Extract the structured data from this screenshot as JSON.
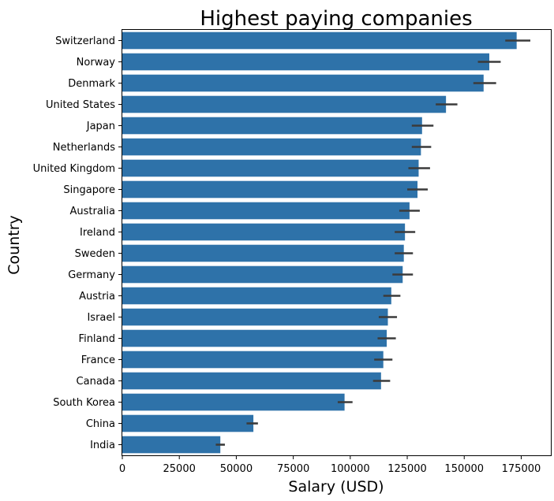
{
  "chart_data": {
    "type": "bar",
    "orientation": "horizontal",
    "title": "Highest paying companies",
    "xlabel": "Salary (USD)",
    "ylabel": "Country",
    "xlim": [
      0,
      188000
    ],
    "xticks": [
      0,
      25000,
      50000,
      75000,
      100000,
      125000,
      150000,
      175000
    ],
    "bar_color": "#2e72a9",
    "errorbar_color": "#3b3b3b",
    "grid": false,
    "legend": "none",
    "categories": [
      "Switzerland",
      "Norway",
      "Denmark",
      "United States",
      "Japan",
      "Netherlands",
      "United Kingdom",
      "Singapore",
      "Australia",
      "Ireland",
      "Sweden",
      "Germany",
      "Austria",
      "Israel",
      "Finland",
      "France",
      "Canada",
      "South Korea",
      "China",
      "India"
    ],
    "values": [
      173000,
      161000,
      158500,
      142000,
      131500,
      131000,
      130000,
      129500,
      126000,
      124000,
      123500,
      123000,
      118000,
      116500,
      116000,
      114500,
      113500,
      97500,
      57500,
      43000
    ],
    "error_low": [
      168000,
      156000,
      154000,
      137500,
      127000,
      127000,
      125500,
      125000,
      121500,
      119500,
      119500,
      118500,
      114500,
      112500,
      112000,
      110500,
      110000,
      94500,
      54500,
      41000
    ],
    "error_high": [
      179000,
      166000,
      164000,
      147000,
      136500,
      135500,
      135000,
      134000,
      130500,
      128500,
      127500,
      127500,
      122000,
      120500,
      120000,
      118500,
      117500,
      101000,
      59500,
      45000
    ]
  }
}
